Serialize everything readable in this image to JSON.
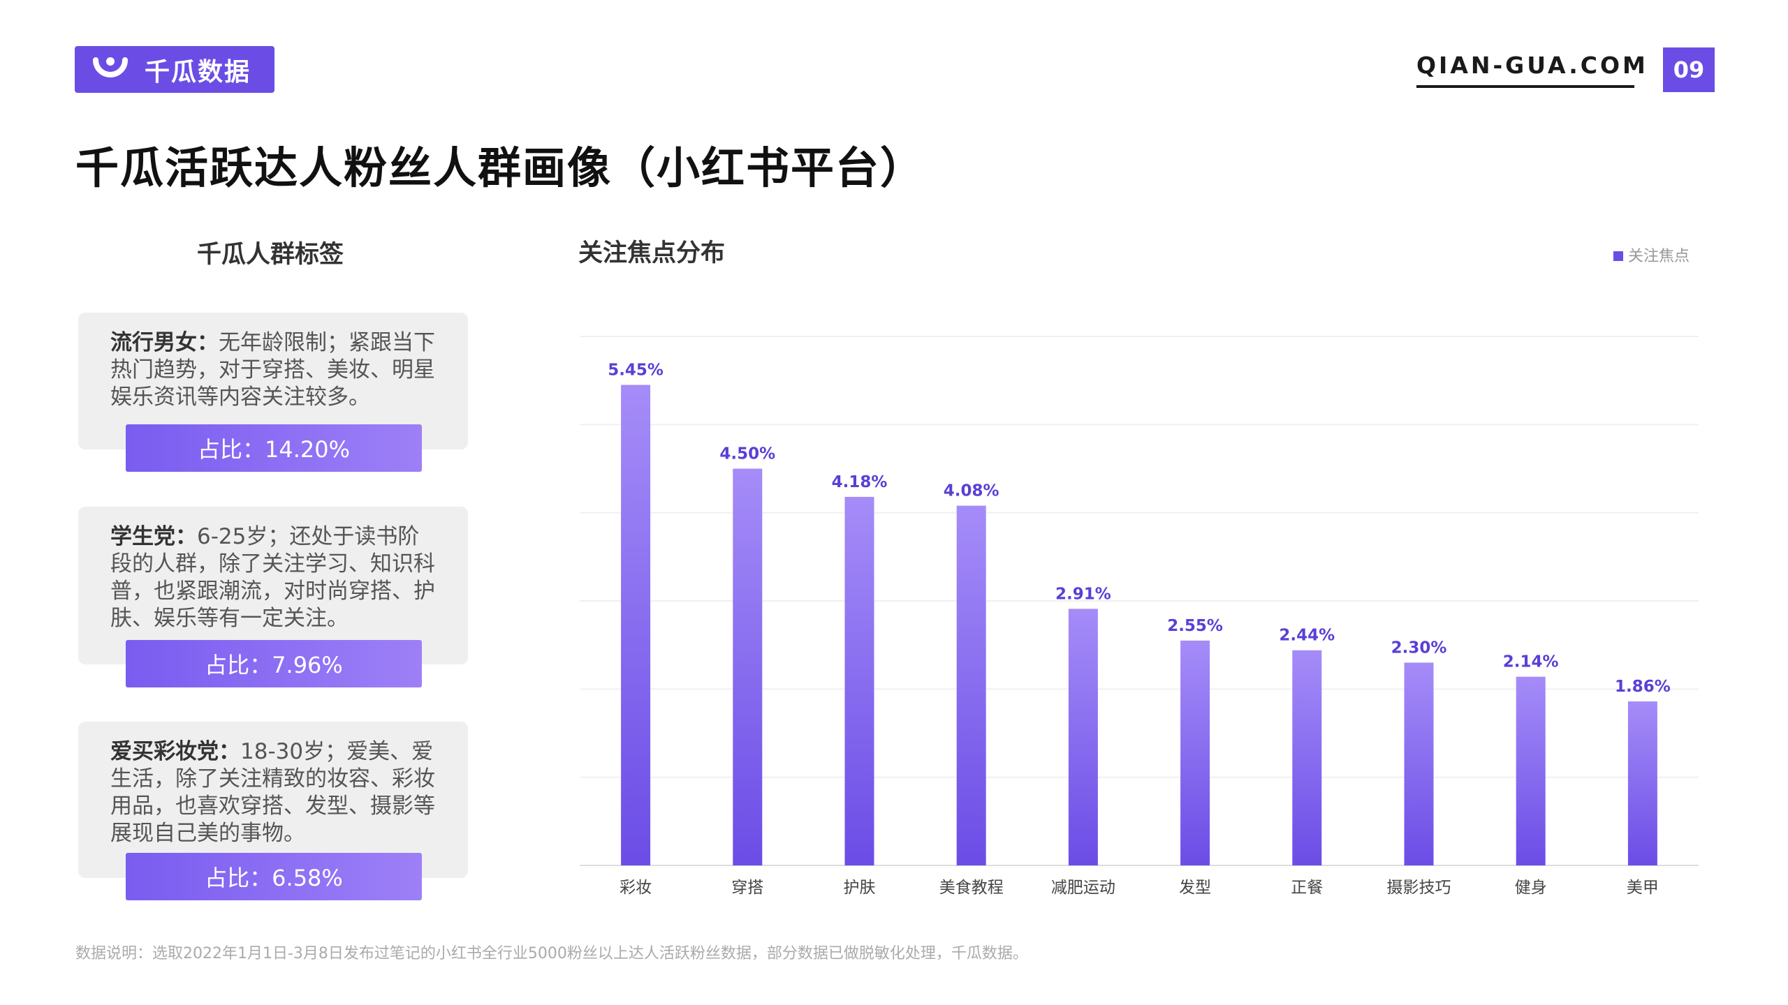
{
  "brand": {
    "logo_text": "千瓜数据",
    "site": "QIAN-GUA.COM",
    "page_number": "09"
  },
  "title": "千瓜活跃达人粉丝人群画像（小红书平台）",
  "tags": {
    "heading": "千瓜人群标签",
    "cards": [
      {
        "name": "流行男女：",
        "desc": "无年龄限制；紧跟当下热门趋势，对于穿搭、美妆、明星娱乐资讯等内容关注较多。",
        "share": "占比：14.20%"
      },
      {
        "name": "学生党：",
        "desc": "6-25岁；还处于读书阶段的人群，除了关注学习、知识科普，也紧跟潮流，对时尚穿搭、护肤、娱乐等有一定关注。",
        "share": "占比：7.96%"
      },
      {
        "name": "爱买彩妆党：",
        "desc": "18-30岁；爱美、爱生活，除了关注精致的妆容、彩妆用品，也喜欢穿搭、发型、摄影等展现自己美的事物。",
        "share": "占比：6.58%"
      }
    ]
  },
  "chart_title": "关注焦点分布",
  "chart_data": {
    "type": "bar",
    "categories": [
      "彩妆",
      "穿搭",
      "护肤",
      "美食教程",
      "减肥运动",
      "发型",
      "正餐",
      "摄影技巧",
      "健身",
      "美甲"
    ],
    "series": [
      {
        "name": "关注焦点",
        "values": [
          5.45,
          4.5,
          4.18,
          4.08,
          2.91,
          2.55,
          2.44,
          2.3,
          2.14,
          1.86
        ]
      }
    ],
    "data_labels": [
      "5.45%",
      "4.50%",
      "4.18%",
      "4.08%",
      "2.91%",
      "2.55%",
      "2.44%",
      "2.30%",
      "2.14%",
      "1.86%"
    ],
    "ylim": [
      0,
      6
    ],
    "grid": true,
    "legend_position": "top-right",
    "bar_color_top": "#a58cf8",
    "bar_color_bottom": "#6b4de6",
    "label_color": "#5b3fd6"
  },
  "note": "数据说明：选取2022年1月1日-3月8日发布过笔记的小红书全行业5000粉丝以上达人活跃粉丝数据，部分数据已做脱敏化处理，千瓜数据。"
}
